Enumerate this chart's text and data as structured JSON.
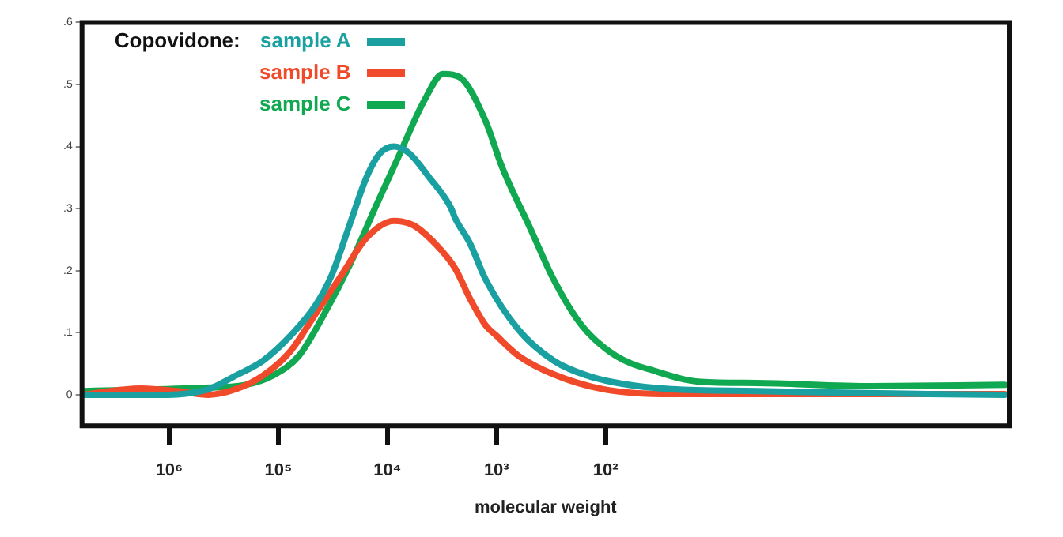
{
  "chart_data": {
    "type": "line",
    "xlabel": "molecular weight",
    "legend_title": "Copovidone:",
    "legend": "top left",
    "log": "x",
    "grid": false,
    "xlim": [
      6300000,
      0.02
    ],
    "xticks": [
      {
        "value": 1000000,
        "label": "10⁶"
      },
      {
        "value": 100000,
        "label": "10⁵"
      },
      {
        "value": 10000,
        "label": "10⁴"
      },
      {
        "value": 1000,
        "label": "10³"
      },
      {
        "value": 100,
        "label": "10²"
      }
    ],
    "ylim": [
      -0.05,
      0.6
    ],
    "yticks": [
      {
        "value": 0,
        "label": "0"
      },
      {
        "value": 0.1,
        "label": ".1"
      },
      {
        "value": 0.2,
        "label": ".2"
      },
      {
        "value": 0.3,
        "label": ".3"
      },
      {
        "value": 0.4,
        "label": ".4"
      },
      {
        "value": 0.5,
        "label": ".5"
      },
      {
        "value": 0.6,
        "label": ".6"
      }
    ],
    "series": [
      {
        "name": "sample A",
        "color": "#1aa0a0",
        "x": [
          6200000,
          1020000,
          437000,
          245000,
          138000,
          77600,
          45700,
          32400,
          21900,
          15500,
          11700,
          8700,
          6300,
          4170,
          2630,
          2400,
          1740,
          1260,
          630,
          300,
          148,
          72,
          25,
          4.1,
          0.11,
          0.022
        ],
        "values": [
          0,
          0,
          0.009,
          0.031,
          0.055,
          0.095,
          0.144,
          0.193,
          0.277,
          0.351,
          0.389,
          0.4,
          0.389,
          0.351,
          0.302,
          0.285,
          0.243,
          0.186,
          0.105,
          0.055,
          0.031,
          0.018,
          0.009,
          0.006,
          0.001,
          0
        ]
      },
      {
        "name": "sample B",
        "color": "#f04a2a",
        "x": [
          6200000,
          1820000,
          851000,
          437000,
          245000,
          138000,
          77600,
          45700,
          26300,
          15500,
          8700,
          5750,
          3630,
          2400,
          1740,
          1260,
          1000,
          630,
          300,
          105,
          25,
          0.022
        ],
        "values": [
          0,
          0.01,
          0.006,
          0,
          0.009,
          0.031,
          0.07,
          0.13,
          0.193,
          0.253,
          0.28,
          0.273,
          0.243,
          0.204,
          0.154,
          0.112,
          0.095,
          0.063,
          0.033,
          0.009,
          0.001,
          0.001
        ]
      },
      {
        "name": "sample C",
        "color": "#10a850",
        "x": [
          6200000,
          537000,
          200000,
          112000,
          64600,
          38000,
          21900,
          12900,
          7900,
          4570,
          3090,
          2190,
          1260,
          890,
          490,
          300,
          166,
          81,
          35,
          13.5,
          4.1,
          0.36,
          0.022
        ],
        "values": [
          0.006,
          0.011,
          0.016,
          0.031,
          0.063,
          0.13,
          0.211,
          0.302,
          0.384,
          0.475,
          0.517,
          0.512,
          0.441,
          0.367,
          0.268,
          0.186,
          0.112,
          0.063,
          0.038,
          0.021,
          0.019,
          0.014,
          0.016
        ]
      }
    ]
  }
}
